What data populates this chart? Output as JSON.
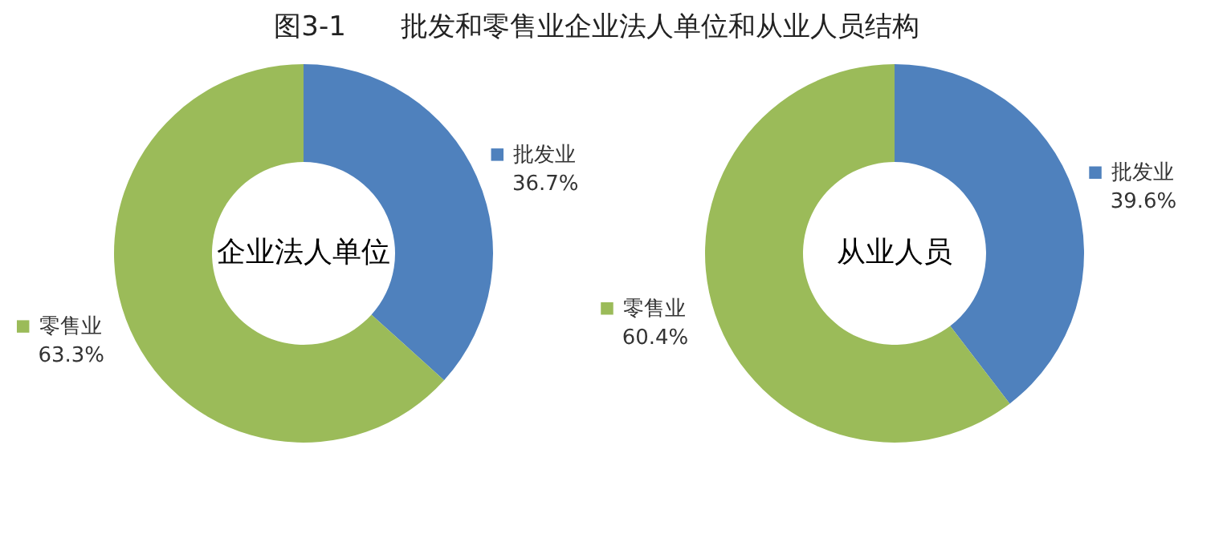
{
  "chart_data": [
    {
      "type": "donut",
      "title": "图3-1　　批发和零售业企业法人单位和从业人员结构",
      "categories": [
        "批发业",
        "零售业"
      ],
      "values": [
        36.7,
        63.3
      ],
      "value_labels": [
        "36.7%",
        "63.3%"
      ],
      "colors": [
        "#4f81bd",
        "#9bbb59"
      ],
      "annotations": [
        "企业法人单位"
      ],
      "legend": "right"
    },
    {
      "type": "donut",
      "categories": [
        "批发业",
        "零售业"
      ],
      "values": [
        39.6,
        60.4
      ],
      "value_labels": [
        "39.6%",
        "60.4%"
      ],
      "colors": [
        "#4f81bd",
        "#9bbb59"
      ],
      "annotations": [
        "从业人员"
      ],
      "legend": "right"
    }
  ]
}
